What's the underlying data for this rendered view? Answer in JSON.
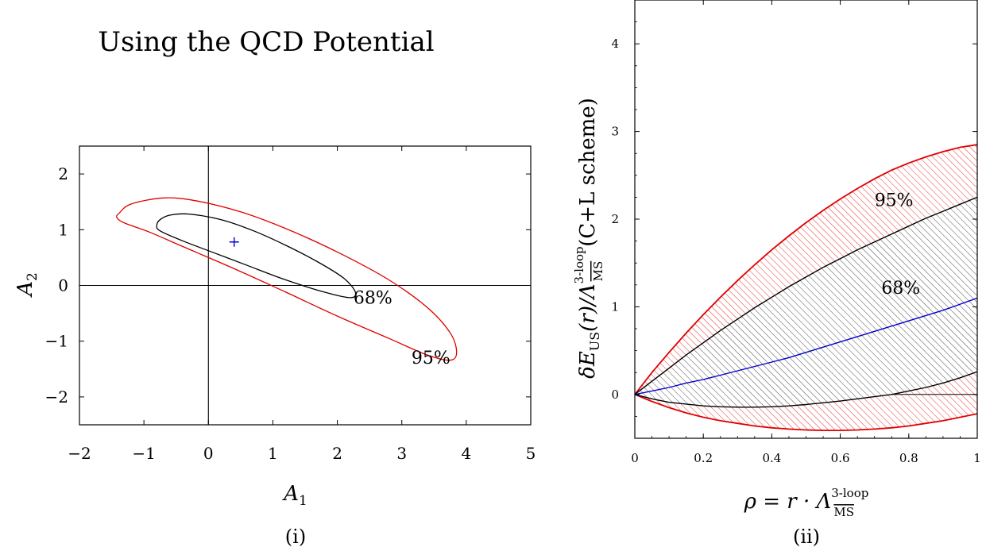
{
  "chart_data": [
    {
      "type": "contour",
      "title": "Using the QCD Potential",
      "caption": "(i)",
      "xlabel_base": "A",
      "xlabel_sub": "1",
      "ylabel_base": "A",
      "ylabel_sub": "2",
      "xlim": [
        -2,
        5
      ],
      "ylim": [
        -2.5,
        2.5
      ],
      "xticks": [
        "−2",
        "−1",
        "0",
        "1",
        "2",
        "3",
        "4",
        "5"
      ],
      "yticks": [
        "2",
        "1",
        "0",
        "−1",
        "−2"
      ],
      "colors": {
        "cl68": "#000000",
        "cl95": "#e00000",
        "best_fit": "#0000cc"
      },
      "best_fit": [
        0.4,
        0.78
      ],
      "contours": [
        {
          "label": "68%",
          "label_at": [
            2.25,
            -0.33
          ],
          "points": [
            [
              -0.75,
              1.18
            ],
            [
              -0.6,
              1.26
            ],
            [
              -0.3,
              1.28
            ],
            [
              0.2,
              1.18
            ],
            [
              0.7,
              0.98
            ],
            [
              1.2,
              0.72
            ],
            [
              1.7,
              0.42
            ],
            [
              2.1,
              0.13
            ],
            [
              2.28,
              -0.12
            ],
            [
              2.2,
              -0.22
            ],
            [
              1.8,
              -0.12
            ],
            [
              1.2,
              0.1
            ],
            [
              0.6,
              0.36
            ],
            [
              0.1,
              0.58
            ],
            [
              -0.4,
              0.8
            ],
            [
              -0.75,
              0.98
            ],
            [
              -0.8,
              1.08
            ]
          ]
        },
        {
          "label": "95%",
          "label_at": [
            3.15,
            -1.4
          ],
          "points": [
            [
              -1.38,
              1.3
            ],
            [
              -1.2,
              1.46
            ],
            [
              -0.7,
              1.57
            ],
            [
              -0.2,
              1.52
            ],
            [
              0.5,
              1.32
            ],
            [
              1.2,
              1.02
            ],
            [
              2.0,
              0.6
            ],
            [
              2.8,
              0.1
            ],
            [
              3.4,
              -0.4
            ],
            [
              3.75,
              -0.85
            ],
            [
              3.85,
              -1.2
            ],
            [
              3.75,
              -1.34
            ],
            [
              3.4,
              -1.25
            ],
            [
              2.8,
              -0.95
            ],
            [
              2.0,
              -0.55
            ],
            [
              1.2,
              -0.12
            ],
            [
              0.4,
              0.3
            ],
            [
              -0.4,
              0.7
            ],
            [
              -0.9,
              0.95
            ],
            [
              -1.3,
              1.12
            ],
            [
              -1.42,
              1.22
            ]
          ]
        }
      ]
    },
    {
      "type": "area",
      "caption": "(ii)",
      "xlabel": "ρ = r · Λ",
      "xlabel_sup": "3-loop",
      "xlabel_sub": "MS",
      "ylabel": "δE",
      "ylabel_sub": "US",
      "ylabel_mid": "(r)/Λ",
      "ylabel_sup": "3-loop",
      "ylabel_sub2": "MS",
      "ylabel_suffix": "(C+L scheme)",
      "xlim": [
        0,
        1
      ],
      "ylim": [
        -0.5,
        4.5
      ],
      "xticks": [
        "0",
        "0.2",
        "0.4",
        "0.6",
        "0.8",
        "1"
      ],
      "yticks": [
        "0",
        "1",
        "2",
        "3",
        "4"
      ],
      "colors": {
        "band95": "#e00000",
        "band68": "#000000",
        "central": "#0000cc"
      },
      "x": [
        0,
        0.05,
        0.1,
        0.15,
        0.2,
        0.25,
        0.3,
        0.35,
        0.4,
        0.45,
        0.5,
        0.55,
        0.6,
        0.65,
        0.7,
        0.75,
        0.8,
        0.85,
        0.9,
        0.95,
        1.0
      ],
      "series": [
        {
          "role": "upper95",
          "values": [
            0,
            0.25,
            0.48,
            0.7,
            0.91,
            1.11,
            1.3,
            1.48,
            1.65,
            1.81,
            1.96,
            2.1,
            2.23,
            2.35,
            2.46,
            2.56,
            2.64,
            2.71,
            2.77,
            2.82,
            2.85
          ]
        },
        {
          "role": "upper68",
          "values": [
            0,
            0.15,
            0.3,
            0.45,
            0.59,
            0.73,
            0.86,
            0.99,
            1.11,
            1.23,
            1.34,
            1.45,
            1.55,
            1.65,
            1.74,
            1.83,
            1.92,
            2.01,
            2.09,
            2.17,
            2.25
          ]
        },
        {
          "role": "central",
          "values": [
            0,
            0.04,
            0.08,
            0.13,
            0.17,
            0.22,
            0.27,
            0.32,
            0.37,
            0.42,
            0.48,
            0.54,
            0.6,
            0.66,
            0.72,
            0.78,
            0.84,
            0.9,
            0.96,
            1.03,
            1.1
          ]
        },
        {
          "role": "lower68",
          "values": [
            0,
            -0.05,
            -0.09,
            -0.11,
            -0.13,
            -0.14,
            -0.145,
            -0.145,
            -0.14,
            -0.13,
            -0.115,
            -0.095,
            -0.075,
            -0.05,
            -0.025,
            0.0,
            0.04,
            0.08,
            0.13,
            0.19,
            0.26
          ]
        },
        {
          "role": "lower95",
          "values": [
            0,
            -0.08,
            -0.15,
            -0.21,
            -0.26,
            -0.3,
            -0.33,
            -0.36,
            -0.38,
            -0.395,
            -0.405,
            -0.41,
            -0.41,
            -0.405,
            -0.395,
            -0.38,
            -0.36,
            -0.33,
            -0.3,
            -0.26,
            -0.22
          ]
        }
      ],
      "annotations": [
        {
          "text": "95%",
          "at": [
            0.7,
            2.15
          ]
        },
        {
          "text": "68%",
          "at": [
            0.72,
            1.15
          ]
        }
      ]
    }
  ]
}
